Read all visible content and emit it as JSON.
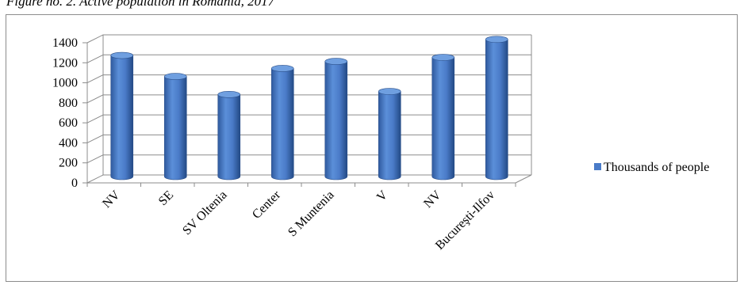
{
  "caption": "Figure no. 2. Active population in Romania, 2017",
  "chart_data": {
    "type": "bar",
    "title": "",
    "xlabel": "",
    "ylabel": "",
    "ylim": [
      0,
      1400
    ],
    "yticks": [
      0,
      200,
      400,
      600,
      800,
      1000,
      1200,
      1400
    ],
    "grid": true,
    "legend": "right",
    "categories": [
      "NV",
      "SE",
      "SV Oltenia",
      "Center",
      "S Muntenia",
      "V",
      "NV",
      "Bucureşti-Ilfov"
    ],
    "series": [
      {
        "name": "Thousands of people",
        "color": "#4a7bc8",
        "values": [
          1210,
          1000,
          820,
          1080,
          1150,
          850,
          1190,
          1370
        ]
      }
    ]
  }
}
